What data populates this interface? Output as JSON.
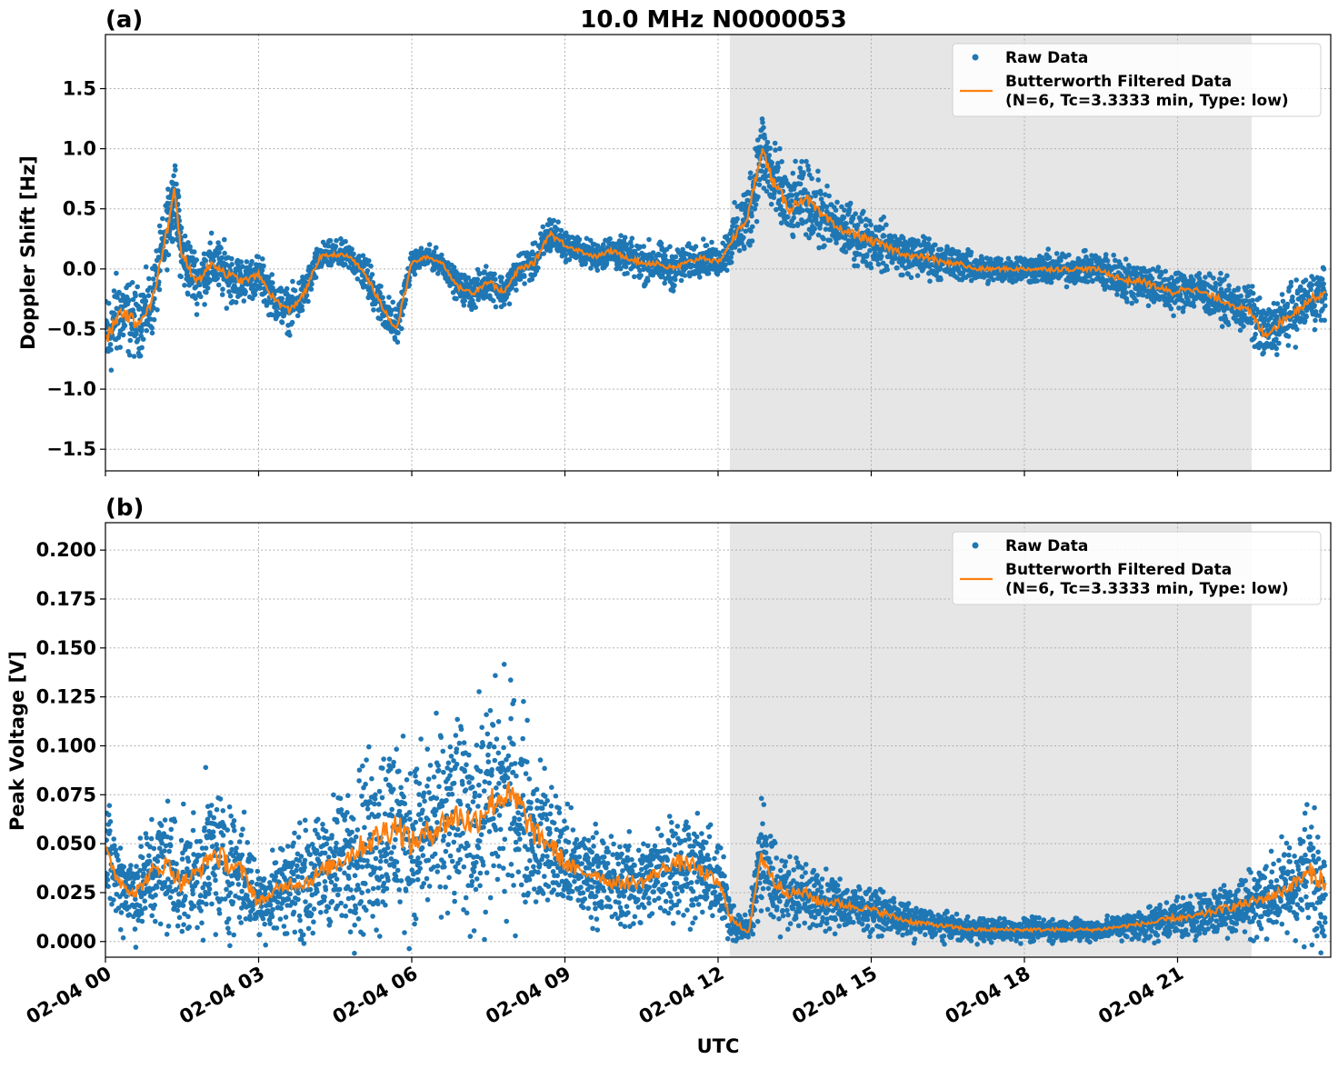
{
  "title": "10.0 MHz N0000053",
  "xlabel": "UTC",
  "x_ticks": [
    "02-04 00",
    "02-04 03",
    "02-04 06",
    "02-04 09",
    "02-04 12",
    "02-04 15",
    "02-04 18",
    "02-04 21"
  ],
  "legend": {
    "raw": "Raw Data",
    "filtered_line1": "Butterworth Filtered Data",
    "filtered_line2": "(N=6, Tc=3.3333 min, Type: low)"
  },
  "colors": {
    "raw": "#1f77b4",
    "filtered": "#ff7f0e",
    "shade": "#e6e6e6"
  },
  "chart_data": [
    {
      "type": "scatter",
      "panel_label": "(a)",
      "title": "10.0 MHz N0000053",
      "xlabel": "",
      "ylabel": "Doppler Shift [Hz]",
      "xlim": [
        0,
        24
      ],
      "x_unit": "hours since 02-04 00 UTC",
      "ylim": [
        -1.68,
        1.95
      ],
      "y_ticks": [
        1.5,
        1.0,
        0.5,
        0.0,
        -0.5,
        -1.0,
        -1.5
      ],
      "y_tick_labels": [
        "1.5",
        "1.0",
        "0.5",
        "0.0",
        "−0.5",
        "−1.0",
        "−1.5"
      ],
      "shaded_interval": [
        12.23,
        22.45
      ],
      "grid": true,
      "legend_position": "top-right",
      "series": [
        {
          "name": "Raw Data",
          "kind": "scatter",
          "x": [
            0.0,
            0.3,
            0.6,
            0.9,
            1.2,
            1.35,
            1.5,
            1.8,
            2.1,
            2.4,
            2.7,
            3.0,
            3.3,
            3.6,
            3.9,
            4.2,
            4.5,
            4.8,
            5.1,
            5.4,
            5.7,
            6.0,
            6.3,
            6.6,
            6.9,
            7.2,
            7.5,
            7.8,
            8.1,
            8.4,
            8.7,
            9.0,
            9.3,
            9.6,
            9.9,
            10.2,
            10.5,
            10.8,
            11.1,
            11.4,
            11.7,
            12.0,
            12.3,
            12.6,
            12.85,
            13.1,
            13.4,
            13.7,
            14.0,
            14.3,
            14.6,
            14.9,
            15.2,
            15.5,
            15.8,
            16.1,
            16.4,
            16.7,
            17.0,
            17.3,
            17.6,
            17.9,
            18.2,
            18.5,
            18.8,
            19.1,
            19.4,
            19.7,
            20.0,
            20.3,
            20.6,
            20.9,
            21.2,
            21.5,
            21.8,
            22.1,
            22.4,
            22.7,
            23.0,
            23.3,
            23.6,
            23.9
          ],
          "y": [
            -0.6,
            -0.35,
            -0.45,
            -0.3,
            0.3,
            0.65,
            0.1,
            -0.1,
            0.05,
            -0.05,
            -0.1,
            -0.05,
            -0.25,
            -0.35,
            -0.2,
            0.1,
            0.12,
            0.1,
            -0.05,
            -0.3,
            -0.5,
            0.05,
            0.1,
            0.05,
            -0.15,
            -0.2,
            -0.1,
            -0.2,
            0.0,
            0.05,
            0.3,
            0.2,
            0.15,
            0.1,
            0.15,
            0.1,
            0.05,
            0.05,
            0.0,
            0.05,
            0.1,
            0.05,
            0.25,
            0.45,
            1.0,
            0.7,
            0.5,
            0.6,
            0.45,
            0.35,
            0.3,
            0.25,
            0.2,
            0.15,
            0.1,
            0.1,
            0.05,
            0.05,
            0.0,
            0.0,
            0.0,
            0.0,
            0.0,
            0.0,
            0.0,
            0.0,
            0.0,
            -0.05,
            -0.1,
            -0.1,
            -0.15,
            -0.2,
            -0.15,
            -0.2,
            -0.25,
            -0.3,
            -0.35,
            -0.55,
            -0.45,
            -0.35,
            -0.25,
            -0.2
          ],
          "spread": [
            0.35,
            0.3,
            0.25,
            0.25,
            0.25,
            0.2,
            0.25,
            0.2,
            0.2,
            0.2,
            0.15,
            0.15,
            0.15,
            0.15,
            0.15,
            0.1,
            0.1,
            0.1,
            0.15,
            0.15,
            0.15,
            0.08,
            0.08,
            0.08,
            0.1,
            0.12,
            0.12,
            0.12,
            0.12,
            0.12,
            0.15,
            0.1,
            0.1,
            0.1,
            0.12,
            0.12,
            0.15,
            0.15,
            0.15,
            0.12,
            0.12,
            0.1,
            0.2,
            0.3,
            0.3,
            0.3,
            0.25,
            0.25,
            0.25,
            0.2,
            0.2,
            0.2,
            0.18,
            0.15,
            0.15,
            0.15,
            0.12,
            0.12,
            0.1,
            0.1,
            0.1,
            0.1,
            0.1,
            0.12,
            0.12,
            0.1,
            0.12,
            0.15,
            0.15,
            0.15,
            0.15,
            0.15,
            0.15,
            0.15,
            0.15,
            0.15,
            0.2,
            0.2,
            0.2,
            0.2,
            0.2,
            0.2
          ]
        },
        {
          "name": "Butterworth Filtered Data (N=6, Tc=3.3333 min, Type: low)",
          "kind": "line",
          "x": [
            0.0,
            0.3,
            0.6,
            0.9,
            1.2,
            1.35,
            1.5,
            1.8,
            2.1,
            2.4,
            2.7,
            3.0,
            3.3,
            3.6,
            3.9,
            4.2,
            4.5,
            4.8,
            5.1,
            5.4,
            5.7,
            6.0,
            6.3,
            6.6,
            6.9,
            7.2,
            7.5,
            7.8,
            8.1,
            8.4,
            8.7,
            9.0,
            9.3,
            9.6,
            9.9,
            10.2,
            10.5,
            10.8,
            11.1,
            11.4,
            11.7,
            12.0,
            12.3,
            12.6,
            12.85,
            13.1,
            13.4,
            13.7,
            14.0,
            14.3,
            14.6,
            14.9,
            15.2,
            15.5,
            15.8,
            16.1,
            16.4,
            16.7,
            17.0,
            17.3,
            17.6,
            17.9,
            18.2,
            18.5,
            18.8,
            19.1,
            19.4,
            19.7,
            20.0,
            20.3,
            20.6,
            20.9,
            21.2,
            21.5,
            21.8,
            22.1,
            22.4,
            22.7,
            23.0,
            23.3,
            23.6,
            23.9
          ],
          "y": [
            -0.6,
            -0.35,
            -0.45,
            -0.3,
            0.3,
            0.65,
            0.1,
            -0.1,
            0.05,
            -0.05,
            -0.1,
            -0.05,
            -0.25,
            -0.35,
            -0.2,
            0.1,
            0.12,
            0.1,
            -0.05,
            -0.3,
            -0.5,
            0.05,
            0.1,
            0.05,
            -0.15,
            -0.2,
            -0.1,
            -0.2,
            0.0,
            0.05,
            0.3,
            0.2,
            0.15,
            0.1,
            0.15,
            0.1,
            0.05,
            0.05,
            0.0,
            0.05,
            0.1,
            0.05,
            0.25,
            0.45,
            1.0,
            0.7,
            0.5,
            0.6,
            0.45,
            0.35,
            0.3,
            0.25,
            0.2,
            0.15,
            0.1,
            0.1,
            0.05,
            0.05,
            0.0,
            0.0,
            0.0,
            0.0,
            0.0,
            0.0,
            0.0,
            0.0,
            0.0,
            -0.05,
            -0.1,
            -0.1,
            -0.15,
            -0.2,
            -0.15,
            -0.2,
            -0.25,
            -0.3,
            -0.35,
            -0.55,
            -0.45,
            -0.35,
            -0.25,
            -0.2
          ]
        }
      ]
    },
    {
      "type": "scatter",
      "panel_label": "(b)",
      "title": "",
      "xlabel": "UTC",
      "ylabel": "Peak Voltage [V]",
      "xlim": [
        0,
        24
      ],
      "x_unit": "hours since 02-04 00 UTC",
      "ylim": [
        -0.008,
        0.214
      ],
      "y_ticks": [
        0.2,
        0.175,
        0.15,
        0.125,
        0.1,
        0.075,
        0.05,
        0.025,
        0.0
      ],
      "y_tick_labels": [
        "0.200",
        "0.175",
        "0.150",
        "0.125",
        "0.100",
        "0.075",
        "0.050",
        "0.025",
        "0.000"
      ],
      "shaded_interval": [
        12.23,
        22.45
      ],
      "grid": true,
      "legend_position": "top-right",
      "series": [
        {
          "name": "Raw Data",
          "kind": "scatter",
          "x": [
            0.0,
            0.3,
            0.6,
            0.9,
            1.2,
            1.5,
            1.8,
            2.1,
            2.4,
            2.7,
            3.0,
            3.3,
            3.6,
            3.9,
            4.2,
            4.5,
            4.8,
            5.1,
            5.4,
            5.7,
            6.0,
            6.3,
            6.6,
            6.9,
            7.2,
            7.5,
            7.8,
            8.1,
            8.4,
            8.7,
            9.0,
            9.3,
            9.6,
            9.9,
            10.2,
            10.5,
            10.8,
            11.1,
            11.4,
            11.7,
            12.0,
            12.3,
            12.6,
            12.85,
            13.1,
            13.4,
            13.7,
            14.0,
            14.3,
            14.6,
            14.9,
            15.2,
            15.5,
            15.8,
            16.1,
            16.4,
            16.7,
            17.0,
            17.3,
            17.6,
            17.9,
            18.2,
            18.5,
            18.8,
            19.1,
            19.4,
            19.7,
            20.0,
            20.3,
            20.6,
            20.9,
            21.2,
            21.5,
            21.8,
            22.1,
            22.4,
            22.7,
            23.0,
            23.3,
            23.6,
            23.9
          ],
          "y": [
            0.045,
            0.03,
            0.025,
            0.035,
            0.04,
            0.03,
            0.035,
            0.045,
            0.04,
            0.035,
            0.02,
            0.025,
            0.03,
            0.03,
            0.035,
            0.04,
            0.045,
            0.05,
            0.055,
            0.06,
            0.05,
            0.055,
            0.06,
            0.065,
            0.06,
            0.07,
            0.075,
            0.07,
            0.055,
            0.05,
            0.04,
            0.035,
            0.035,
            0.03,
            0.03,
            0.03,
            0.035,
            0.04,
            0.04,
            0.035,
            0.03,
            0.01,
            0.005,
            0.045,
            0.03,
            0.025,
            0.025,
            0.02,
            0.02,
            0.018,
            0.017,
            0.015,
            0.012,
            0.01,
            0.009,
            0.008,
            0.007,
            0.006,
            0.006,
            0.006,
            0.006,
            0.006,
            0.006,
            0.006,
            0.006,
            0.006,
            0.007,
            0.008,
            0.009,
            0.01,
            0.012,
            0.012,
            0.014,
            0.016,
            0.018,
            0.02,
            0.022,
            0.025,
            0.03,
            0.035,
            0.03
          ],
          "spread": [
            0.025,
            0.02,
            0.02,
            0.025,
            0.03,
            0.025,
            0.025,
            0.035,
            0.03,
            0.025,
            0.015,
            0.02,
            0.02,
            0.025,
            0.025,
            0.03,
            0.035,
            0.04,
            0.045,
            0.045,
            0.035,
            0.04,
            0.04,
            0.045,
            0.045,
            0.05,
            0.05,
            0.045,
            0.035,
            0.03,
            0.025,
            0.02,
            0.02,
            0.02,
            0.02,
            0.02,
            0.02,
            0.025,
            0.025,
            0.02,
            0.02,
            0.008,
            0.005,
            0.03,
            0.02,
            0.015,
            0.015,
            0.012,
            0.012,
            0.01,
            0.01,
            0.009,
            0.008,
            0.007,
            0.006,
            0.006,
            0.005,
            0.005,
            0.005,
            0.005,
            0.005,
            0.005,
            0.005,
            0.005,
            0.005,
            0.005,
            0.005,
            0.006,
            0.007,
            0.008,
            0.009,
            0.009,
            0.01,
            0.012,
            0.013,
            0.015,
            0.017,
            0.02,
            0.025,
            0.03,
            0.025
          ]
        },
        {
          "name": "Butterworth Filtered Data (N=6, Tc=3.3333 min, Type: low)",
          "kind": "line",
          "x": [
            0.0,
            0.3,
            0.6,
            0.9,
            1.2,
            1.5,
            1.8,
            2.1,
            2.4,
            2.7,
            3.0,
            3.3,
            3.6,
            3.9,
            4.2,
            4.5,
            4.8,
            5.1,
            5.4,
            5.7,
            6.0,
            6.3,
            6.6,
            6.9,
            7.2,
            7.5,
            7.8,
            8.1,
            8.4,
            8.7,
            9.0,
            9.3,
            9.6,
            9.9,
            10.2,
            10.5,
            10.8,
            11.1,
            11.4,
            11.7,
            12.0,
            12.3,
            12.6,
            12.85,
            13.1,
            13.4,
            13.7,
            14.0,
            14.3,
            14.6,
            14.9,
            15.2,
            15.5,
            15.8,
            16.1,
            16.4,
            16.7,
            17.0,
            17.3,
            17.6,
            17.9,
            18.2,
            18.5,
            18.8,
            19.1,
            19.4,
            19.7,
            20.0,
            20.3,
            20.6,
            20.9,
            21.2,
            21.5,
            21.8,
            22.1,
            22.4,
            22.7,
            23.0,
            23.3,
            23.6,
            23.9
          ],
          "y": [
            0.045,
            0.03,
            0.025,
            0.035,
            0.04,
            0.03,
            0.035,
            0.045,
            0.04,
            0.035,
            0.02,
            0.025,
            0.03,
            0.03,
            0.035,
            0.04,
            0.045,
            0.05,
            0.055,
            0.06,
            0.05,
            0.055,
            0.06,
            0.065,
            0.06,
            0.07,
            0.075,
            0.07,
            0.055,
            0.05,
            0.04,
            0.035,
            0.035,
            0.03,
            0.03,
            0.03,
            0.035,
            0.04,
            0.04,
            0.035,
            0.03,
            0.01,
            0.005,
            0.045,
            0.03,
            0.025,
            0.025,
            0.02,
            0.02,
            0.018,
            0.017,
            0.015,
            0.012,
            0.01,
            0.009,
            0.008,
            0.007,
            0.006,
            0.006,
            0.006,
            0.006,
            0.006,
            0.006,
            0.006,
            0.006,
            0.006,
            0.007,
            0.008,
            0.009,
            0.01,
            0.012,
            0.012,
            0.014,
            0.016,
            0.018,
            0.02,
            0.022,
            0.025,
            0.03,
            0.035,
            0.03
          ]
        }
      ]
    }
  ]
}
